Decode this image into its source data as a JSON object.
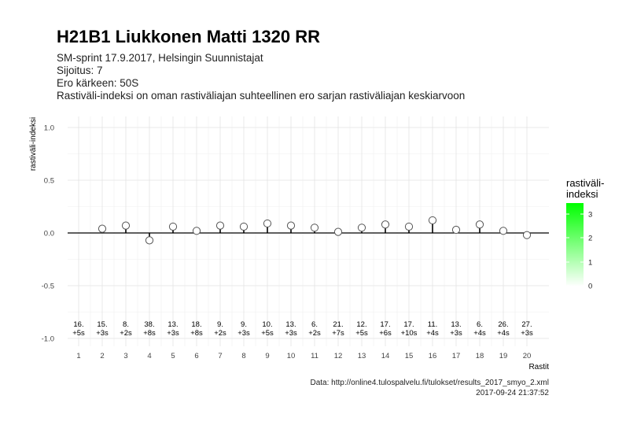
{
  "header": {
    "title": "H21B1 Liukkonen Matti 1320 RR",
    "subtitle_lines": [
      "SM-sprint 17.9.2017, Helsingin Suunnistajat",
      "Sijoitus: 7",
      "Ero kärkeen: 50S",
      "Rastiväli-indeksi on oman rastiväliajan suhteellinen ero sarjan rastiväliajan keskiarvoon"
    ]
  },
  "footer": {
    "source": "Data: http://online4.tulospalvelu.fi/tulokset/results_2017_smyo_2.xml",
    "timestamp": "2017-09-24 21:37:52"
  },
  "legend": {
    "title_line1": "rastiväli-",
    "title_line2": "indeksi",
    "ticks": [
      "3",
      "2",
      "1",
      "0"
    ],
    "low_color": "#ffffff",
    "high_color": "#00ff00"
  },
  "chart_data": {
    "type": "scatter",
    "xlabel": "Rastit",
    "ylabel": "rastiväli-indeksi",
    "ylim": [
      -1.0,
      1.0
    ],
    "y_ticks": [
      "1.0",
      "0.5",
      "0.0",
      "-0.5",
      "-1.0"
    ],
    "x": [
      1,
      2,
      3,
      4,
      5,
      6,
      7,
      8,
      9,
      10,
      11,
      12,
      13,
      14,
      15,
      16,
      17,
      18,
      19,
      20
    ],
    "values": [
      null,
      0.04,
      0.07,
      -0.07,
      0.06,
      0.02,
      0.07,
      0.06,
      0.09,
      0.07,
      0.05,
      0.01,
      0.05,
      0.08,
      0.06,
      0.12,
      0.03,
      0.08,
      0.02,
      -0.02
    ],
    "annotations": [
      [
        "16.",
        "+5s"
      ],
      [
        "15.",
        "+3s"
      ],
      [
        "8.",
        "+2s"
      ],
      [
        "38.",
        "+8s"
      ],
      [
        "13.",
        "+3s"
      ],
      [
        "18.",
        "+8s"
      ],
      [
        "9.",
        "+2s"
      ],
      [
        "9.",
        "+3s"
      ],
      [
        "10.",
        "+5s"
      ],
      [
        "13.",
        "+3s"
      ],
      [
        "6.",
        "+2s"
      ],
      [
        "21.",
        "+7s"
      ],
      [
        "12.",
        "+5s"
      ],
      [
        "17.",
        "+6s"
      ],
      [
        "17.",
        "+10s"
      ],
      [
        "11.",
        "+4s"
      ],
      [
        "13.",
        "+3s"
      ],
      [
        "6.",
        "+4s"
      ],
      [
        "26.",
        "+4s"
      ],
      [
        "27.",
        "+3s"
      ]
    ],
    "grid": true,
    "legend_position": "right",
    "point_fill": "#ffffff",
    "point_stroke": "#555555",
    "zero_line_color": "#000000"
  }
}
